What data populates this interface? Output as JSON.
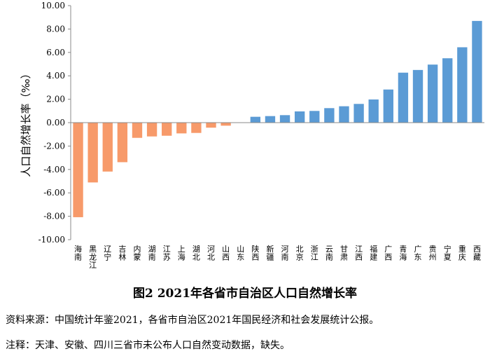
{
  "chart_data": {
    "type": "bar",
    "ylabel": "人口自然增长率（‰）",
    "ylim": [
      -10,
      10
    ],
    "ytick_labels": [
      "10.00",
      "8.00",
      "6.00",
      "4.00",
      "2.00",
      "0.00",
      "-2.00",
      "-4.00",
      "-6.00",
      "-8.00",
      "-10.00"
    ],
    "grid": false,
    "legend": "none",
    "negative_color": "#F79A6A",
    "positive_color": "#5B9BD5",
    "categories": [
      "海南",
      "黑龙江",
      "辽宁",
      "吉林",
      "内蒙",
      "湖南",
      "江苏",
      "上海",
      "湖北",
      "河北",
      "山西",
      "山东",
      "陕西",
      "新疆",
      "河南",
      "北京",
      "浙江",
      "云南",
      "甘肃",
      "江西",
      "福建",
      "广西",
      "青海",
      "广东",
      "贵州",
      "宁夏",
      "重庆",
      "西藏"
    ],
    "values": [
      -8.08,
      -5.11,
      -4.18,
      -3.38,
      -1.3,
      -1.18,
      -1.12,
      -0.92,
      -0.88,
      -0.43,
      -0.26,
      0.0,
      0.5,
      0.56,
      0.64,
      0.96,
      1.0,
      1.24,
      1.4,
      1.6,
      1.98,
      2.83,
      4.27,
      4.5,
      4.96,
      5.5,
      6.44,
      8.69
    ]
  },
  "caption": "图2  2021年各省市自治区人口自然增长率",
  "source": "资料来源：中国统计年鉴2021，各省市自治区2021年国民经济和社会发展统计公报。",
  "note": "注释：天津、安徽、四川三省市未公布人口自然变动数据，缺失。"
}
